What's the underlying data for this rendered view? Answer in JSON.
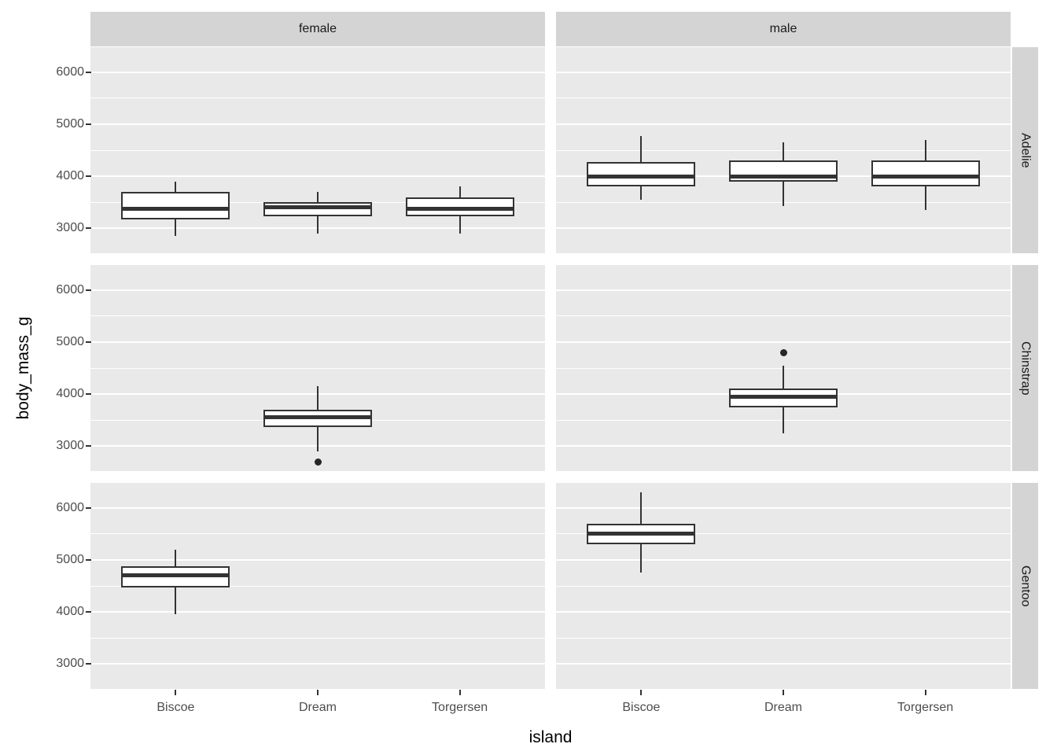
{
  "figure": {
    "xlabel": "island",
    "ylabel": "body_mass_g"
  },
  "chart_data": {
    "type": "boxplot",
    "title": "",
    "xlabel": "island",
    "ylabel": "body_mass_g",
    "facet_columns": [
      "female",
      "male"
    ],
    "facet_rows": [
      "Adelie",
      "Chinstrap",
      "Gentoo"
    ],
    "x_categories": [
      "Biscoe",
      "Dream",
      "Torgersen"
    ],
    "y_axis": {
      "tick_values": [
        6000,
        5000,
        4000,
        3000
      ],
      "range": [
        2520,
        6480
      ],
      "major_gridlines": [
        3000,
        4000,
        5000,
        6000
      ],
      "minor_gridlines": [
        3500,
        4500,
        5500
      ]
    },
    "legend": "none",
    "grid": "on",
    "boxes": [
      {
        "facet_row": "Adelie",
        "facet_col": "female",
        "category": "Biscoe",
        "whisker_low": 2850,
        "q1": 3175,
        "median": 3375,
        "q3": 3700,
        "whisker_high": 3900,
        "outliers": []
      },
      {
        "facet_row": "Adelie",
        "facet_col": "female",
        "category": "Dream",
        "whisker_low": 2900,
        "q1": 3230,
        "median": 3400,
        "q3": 3500,
        "whisker_high": 3700,
        "outliers": []
      },
      {
        "facet_row": "Adelie",
        "facet_col": "female",
        "category": "Torgersen",
        "whisker_low": 2900,
        "q1": 3225,
        "median": 3375,
        "q3": 3600,
        "whisker_high": 3800,
        "outliers": []
      },
      {
        "facet_row": "Adelie",
        "facet_col": "male",
        "category": "Biscoe",
        "whisker_low": 3550,
        "q1": 3800,
        "median": 4000,
        "q3": 4275,
        "whisker_high": 4775,
        "outliers": []
      },
      {
        "facet_row": "Adelie",
        "facet_col": "male",
        "category": "Dream",
        "whisker_low": 3425,
        "q1": 3900,
        "median": 3988,
        "q3": 4300,
        "whisker_high": 4650,
        "outliers": []
      },
      {
        "facet_row": "Adelie",
        "facet_col": "male",
        "category": "Torgersen",
        "whisker_low": 3350,
        "q1": 3800,
        "median": 4000,
        "q3": 4300,
        "whisker_high": 4700,
        "outliers": []
      },
      {
        "facet_row": "Chinstrap",
        "facet_col": "female",
        "category": "Dream",
        "whisker_low": 2900,
        "q1": 3363,
        "median": 3550,
        "q3": 3694,
        "whisker_high": 4150,
        "outliers": [
          2700
        ]
      },
      {
        "facet_row": "Chinstrap",
        "facet_col": "male",
        "category": "Dream",
        "whisker_low": 3250,
        "q1": 3750,
        "median": 3950,
        "q3": 4100,
        "whisker_high": 4550,
        "outliers": [
          4800
        ]
      },
      {
        "facet_row": "Gentoo",
        "facet_col": "female",
        "category": "Biscoe",
        "whisker_low": 3950,
        "q1": 4463,
        "median": 4700,
        "q3": 4875,
        "whisker_high": 5200,
        "outliers": []
      },
      {
        "facet_row": "Gentoo",
        "facet_col": "male",
        "category": "Biscoe",
        "whisker_low": 4750,
        "q1": 5300,
        "median": 5500,
        "q3": 5700,
        "whisker_high": 6300,
        "outliers": []
      }
    ]
  },
  "colors": {
    "panel_background": "#e9e9e9",
    "strip_background": "#d4d4d4",
    "gridline": "#ffffff",
    "box_stroke": "#333333",
    "box_fill": "#ffffff",
    "tick_text": "#4d4d4d",
    "title_text": "#000000"
  }
}
